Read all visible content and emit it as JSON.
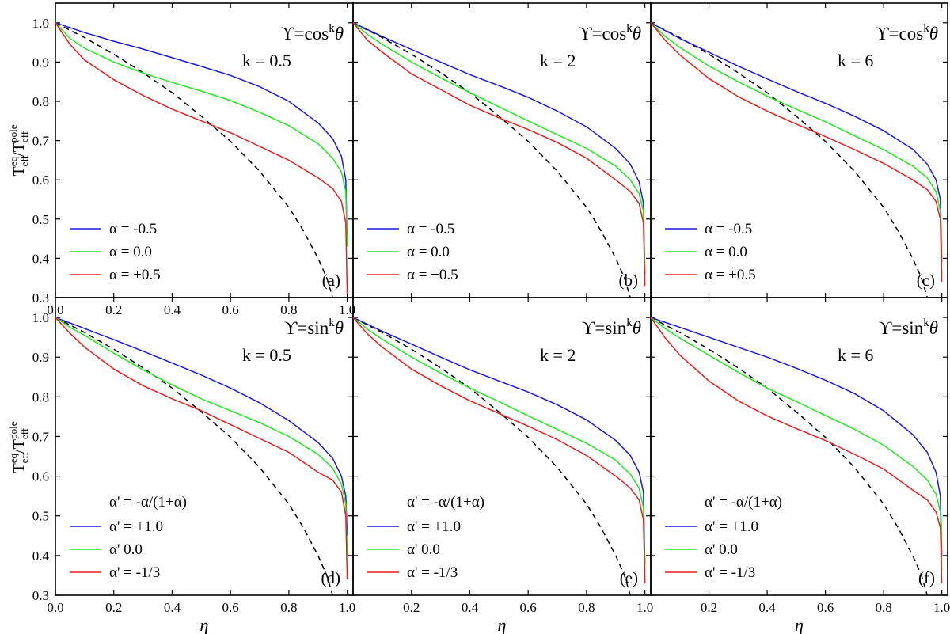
{
  "figure": {
    "y_axis_label": {
      "base": "T",
      "sub1": "eff",
      "sup1": "eq",
      "mid": "/T",
      "sub2": "eff",
      "sup2": "pole"
    },
    "x_axis_label": "η",
    "colors": {
      "blue": "#1a1adc",
      "green": "#22e622",
      "red": "#e61e1e",
      "dashed": "#000000"
    }
  },
  "chart_data": [
    {
      "type": "line",
      "panel": "(a)",
      "title": "ϒ=cos",
      "title_sup": "k",
      "title_theta": "θ",
      "k_label": "k = 0.5",
      "xlabel": "",
      "ylabel": "T_eff^eq/T_eff^pole",
      "xlim": [
        0,
        1.02
      ],
      "ylim": [
        0.3,
        1.05
      ],
      "xticks": [
        "0.0",
        "0.2",
        "0.4",
        "0.6",
        "0.8",
        "1.0"
      ],
      "yticks": [
        "0.3",
        "0.4",
        "0.5",
        "0.6",
        "0.7",
        "0.8",
        "0.9",
        "1.0"
      ],
      "legend_header": "",
      "series": [
        {
          "name": "α = -0.5",
          "color": "blue",
          "x": [
            0,
            0.1,
            0.2,
            0.3,
            0.4,
            0.5,
            0.6,
            0.7,
            0.8,
            0.9,
            0.95,
            0.98,
            0.995,
            1.0
          ],
          "y": [
            1.0,
            0.975,
            0.953,
            0.933,
            0.911,
            0.889,
            0.866,
            0.837,
            0.8,
            0.745,
            0.705,
            0.66,
            0.6,
            0.43
          ]
        },
        {
          "name": "α =  0.0",
          "color": "green",
          "x": [
            0,
            0.05,
            0.1,
            0.2,
            0.3,
            0.4,
            0.5,
            0.6,
            0.7,
            0.8,
            0.9,
            0.95,
            0.98,
            0.995,
            1.0
          ],
          "y": [
            1.0,
            0.96,
            0.935,
            0.9,
            0.872,
            0.848,
            0.826,
            0.802,
            0.772,
            0.738,
            0.692,
            0.655,
            0.62,
            0.57,
            0.43
          ]
        },
        {
          "name": "α = +0.5",
          "color": "red",
          "x": [
            0,
            0.05,
            0.1,
            0.2,
            0.3,
            0.4,
            0.5,
            0.6,
            0.7,
            0.8,
            0.9,
            0.95,
            0.98,
            0.995,
            1.0
          ],
          "y": [
            1.0,
            0.945,
            0.905,
            0.855,
            0.815,
            0.78,
            0.75,
            0.72,
            0.685,
            0.65,
            0.605,
            0.578,
            0.545,
            0.49,
            0.31
          ]
        }
      ],
      "dashed": {
        "x": [
          0,
          0.1,
          0.2,
          0.3,
          0.4,
          0.5,
          0.6,
          0.7,
          0.8,
          0.85,
          0.9,
          0.93,
          0.95
        ],
        "y": [
          1.0,
          0.962,
          0.92,
          0.873,
          0.822,
          0.762,
          0.698,
          0.622,
          0.53,
          0.47,
          0.4,
          0.35,
          0.3
        ]
      }
    },
    {
      "type": "line",
      "panel": "(b)",
      "title": "ϒ=cos",
      "title_sup": "k",
      "title_theta": "θ",
      "k_label": "k = 2",
      "xlabel": "",
      "ylabel": "",
      "xlim": [
        0,
        1.02
      ],
      "ylim": [
        0.3,
        1.05
      ],
      "xticks": [],
      "yticks": [],
      "legend_header": "",
      "series": [
        {
          "name": "α = -0.5",
          "color": "blue",
          "x": [
            0,
            0.1,
            0.2,
            0.3,
            0.4,
            0.5,
            0.6,
            0.7,
            0.8,
            0.9,
            0.95,
            0.98,
            0.995,
            1.0
          ],
          "y": [
            1.0,
            0.965,
            0.932,
            0.9,
            0.868,
            0.84,
            0.81,
            0.775,
            0.735,
            0.68,
            0.64,
            0.595,
            0.54,
            0.36
          ]
        },
        {
          "name": "α =  0.0",
          "color": "green",
          "x": [
            0,
            0.05,
            0.1,
            0.2,
            0.3,
            0.4,
            0.5,
            0.6,
            0.7,
            0.8,
            0.9,
            0.95,
            0.98,
            0.995,
            1.0
          ],
          "y": [
            1.0,
            0.97,
            0.945,
            0.9,
            0.86,
            0.822,
            0.786,
            0.75,
            0.715,
            0.68,
            0.635,
            0.6,
            0.565,
            0.52,
            0.36
          ]
        },
        {
          "name": "α = +0.5",
          "color": "red",
          "x": [
            0,
            0.05,
            0.1,
            0.2,
            0.3,
            0.4,
            0.5,
            0.6,
            0.7,
            0.8,
            0.9,
            0.95,
            0.98,
            0.995,
            1.0
          ],
          "y": [
            1.0,
            0.955,
            0.925,
            0.87,
            0.83,
            0.79,
            0.758,
            0.728,
            0.695,
            0.655,
            0.6,
            0.57,
            0.54,
            0.49,
            0.33
          ]
        }
      ],
      "dashed": {
        "x": [
          0,
          0.1,
          0.2,
          0.3,
          0.4,
          0.5,
          0.6,
          0.7,
          0.8,
          0.85,
          0.9,
          0.93,
          0.95
        ],
        "y": [
          1.0,
          0.962,
          0.92,
          0.873,
          0.822,
          0.762,
          0.698,
          0.622,
          0.53,
          0.47,
          0.4,
          0.35,
          0.3
        ]
      }
    },
    {
      "type": "line",
      "panel": "(c)",
      "title": "ϒ=cos",
      "title_sup": "k",
      "title_theta": "θ",
      "k_label": "k = 6",
      "xlabel": "",
      "ylabel": "",
      "xlim": [
        0,
        1.02
      ],
      "ylim": [
        0.3,
        1.05
      ],
      "xticks": [],
      "yticks": [],
      "legend_header": "",
      "series": [
        {
          "name": "α = -0.5",
          "color": "blue",
          "x": [
            0,
            0.1,
            0.2,
            0.3,
            0.4,
            0.5,
            0.6,
            0.7,
            0.8,
            0.9,
            0.95,
            0.98,
            0.995,
            1.0
          ],
          "y": [
            1.0,
            0.96,
            0.925,
            0.89,
            0.857,
            0.825,
            0.795,
            0.762,
            0.725,
            0.678,
            0.64,
            0.6,
            0.55,
            0.39
          ]
        },
        {
          "name": "α =  0.0",
          "color": "green",
          "x": [
            0,
            0.05,
            0.1,
            0.2,
            0.3,
            0.4,
            0.5,
            0.6,
            0.7,
            0.8,
            0.9,
            0.95,
            0.98,
            0.995,
            1.0
          ],
          "y": [
            1.0,
            0.965,
            0.937,
            0.89,
            0.85,
            0.813,
            0.78,
            0.748,
            0.712,
            0.677,
            0.635,
            0.605,
            0.57,
            0.52,
            0.36
          ]
        },
        {
          "name": "α = +0.5",
          "color": "red",
          "x": [
            0,
            0.05,
            0.1,
            0.2,
            0.3,
            0.4,
            0.5,
            0.6,
            0.7,
            0.8,
            0.9,
            0.95,
            0.98,
            0.995,
            1.0
          ],
          "y": [
            1.0,
            0.955,
            0.918,
            0.858,
            0.812,
            0.775,
            0.742,
            0.71,
            0.677,
            0.642,
            0.6,
            0.575,
            0.545,
            0.5,
            0.34
          ]
        }
      ],
      "dashed": {
        "x": [
          0,
          0.1,
          0.2,
          0.3,
          0.4,
          0.5,
          0.6,
          0.7,
          0.8,
          0.85,
          0.9,
          0.93,
          0.95
        ],
        "y": [
          1.0,
          0.962,
          0.92,
          0.873,
          0.822,
          0.762,
          0.698,
          0.622,
          0.53,
          0.47,
          0.4,
          0.35,
          0.3
        ]
      }
    },
    {
      "type": "line",
      "panel": "(d)",
      "title": "ϒ=sin",
      "title_sup": "k",
      "title_theta": "θ",
      "k_label": "k = 0.5",
      "xlabel": "η",
      "ylabel": "T_eff^eq/T_eff^pole",
      "xlim": [
        0,
        1.02
      ],
      "ylim": [
        0.3,
        1.05
      ],
      "xticks": [
        "0.0",
        "0.2",
        "0.4",
        "0.6",
        "0.8",
        "1.0"
      ],
      "yticks": [
        "0.3",
        "0.4",
        "0.5",
        "0.6",
        "0.7",
        "0.8",
        "0.9",
        "1.0"
      ],
      "legend_header": "α' = -α/(1+α)",
      "series": [
        {
          "name": "α' = +1.0",
          "color": "blue",
          "x": [
            0,
            0.1,
            0.2,
            0.3,
            0.4,
            0.5,
            0.6,
            0.7,
            0.8,
            0.9,
            0.95,
            0.98,
            0.995,
            1.0
          ],
          "y": [
            1.0,
            0.972,
            0.944,
            0.915,
            0.885,
            0.855,
            0.822,
            0.785,
            0.74,
            0.685,
            0.645,
            0.6,
            0.55,
            0.45
          ]
        },
        {
          "name": "α'  0.0",
          "color": "green",
          "x": [
            0,
            0.05,
            0.1,
            0.2,
            0.3,
            0.4,
            0.5,
            0.6,
            0.7,
            0.8,
            0.9,
            0.95,
            0.98,
            0.995,
            1.0
          ],
          "y": [
            1.0,
            0.975,
            0.955,
            0.91,
            0.868,
            0.83,
            0.795,
            0.765,
            0.735,
            0.7,
            0.655,
            0.62,
            0.58,
            0.53,
            0.4
          ]
        },
        {
          "name": "α' = -1/3",
          "color": "red",
          "x": [
            0,
            0.05,
            0.1,
            0.2,
            0.3,
            0.4,
            0.5,
            0.6,
            0.7,
            0.8,
            0.9,
            0.95,
            0.98,
            0.995,
            1.0
          ],
          "y": [
            1.0,
            0.96,
            0.925,
            0.87,
            0.828,
            0.795,
            0.765,
            0.73,
            0.695,
            0.66,
            0.61,
            0.59,
            0.56,
            0.5,
            0.34
          ]
        }
      ],
      "dashed": {
        "x": [
          0,
          0.1,
          0.2,
          0.3,
          0.4,
          0.5,
          0.6,
          0.7,
          0.8,
          0.85,
          0.9,
          0.93,
          0.95
        ],
        "y": [
          1.0,
          0.962,
          0.92,
          0.873,
          0.822,
          0.762,
          0.698,
          0.622,
          0.53,
          0.47,
          0.4,
          0.35,
          0.3
        ]
      }
    },
    {
      "type": "line",
      "panel": "(e)",
      "title": "ϒ=sin",
      "title_sup": "k",
      "title_theta": "θ",
      "k_label": "k = 2",
      "xlabel": "η",
      "ylabel": "",
      "xlim": [
        0,
        1.02
      ],
      "ylim": [
        0.3,
        1.05
      ],
      "xticks": [
        "0.2",
        "0.4",
        "0.6",
        "0.8",
        "1.0"
      ],
      "yticks": [],
      "legend_header": "α' = -α/(1+α)",
      "series": [
        {
          "name": "α' = +1.0",
          "color": "blue",
          "x": [
            0,
            0.1,
            0.2,
            0.3,
            0.4,
            0.5,
            0.6,
            0.7,
            0.8,
            0.9,
            0.95,
            0.98,
            0.995,
            1.0
          ],
          "y": [
            1.0,
            0.965,
            0.933,
            0.9,
            0.868,
            0.84,
            0.812,
            0.78,
            0.742,
            0.69,
            0.652,
            0.61,
            0.56,
            0.38
          ]
        },
        {
          "name": "α'  0.0",
          "color": "green",
          "x": [
            0,
            0.05,
            0.1,
            0.2,
            0.3,
            0.4,
            0.5,
            0.6,
            0.7,
            0.8,
            0.9,
            0.95,
            0.98,
            0.995,
            1.0
          ],
          "y": [
            1.0,
            0.97,
            0.945,
            0.9,
            0.86,
            0.822,
            0.788,
            0.752,
            0.718,
            0.683,
            0.64,
            0.605,
            0.57,
            0.52,
            0.36
          ]
        },
        {
          "name": "α' = -1/3",
          "color": "red",
          "x": [
            0,
            0.05,
            0.1,
            0.2,
            0.3,
            0.4,
            0.5,
            0.6,
            0.7,
            0.8,
            0.9,
            0.95,
            0.98,
            0.995,
            1.0
          ],
          "y": [
            1.0,
            0.958,
            0.925,
            0.87,
            0.828,
            0.79,
            0.758,
            0.726,
            0.692,
            0.652,
            0.6,
            0.57,
            0.54,
            0.49,
            0.33
          ]
        }
      ],
      "dashed": {
        "x": [
          0,
          0.1,
          0.2,
          0.3,
          0.4,
          0.5,
          0.6,
          0.7,
          0.8,
          0.85,
          0.9,
          0.93,
          0.95
        ],
        "y": [
          1.0,
          0.962,
          0.92,
          0.873,
          0.822,
          0.762,
          0.698,
          0.622,
          0.53,
          0.47,
          0.4,
          0.35,
          0.3
        ]
      }
    },
    {
      "type": "line",
      "panel": "(f)",
      "title": "ϒ=sin",
      "title_sup": "k",
      "title_theta": "θ",
      "k_label": "k = 6",
      "xlabel": "η",
      "ylabel": "",
      "xlim": [
        0,
        1.02
      ],
      "ylim": [
        0.3,
        1.05
      ],
      "xticks": [
        "0.2",
        "0.4",
        "0.6",
        "0.8",
        "1.0"
      ],
      "yticks": [],
      "legend_header": "α' = -α/(1+α)",
      "series": [
        {
          "name": "α' = +1.0",
          "color": "blue",
          "x": [
            0,
            0.1,
            0.2,
            0.3,
            0.4,
            0.5,
            0.6,
            0.7,
            0.8,
            0.9,
            0.95,
            0.98,
            0.995,
            1.0
          ],
          "y": [
            1.0,
            0.975,
            0.95,
            0.925,
            0.9,
            0.872,
            0.842,
            0.808,
            0.765,
            0.705,
            0.66,
            0.61,
            0.55,
            0.4
          ]
        },
        {
          "name": "α'  0.0",
          "color": "green",
          "x": [
            0,
            0.05,
            0.1,
            0.2,
            0.3,
            0.4,
            0.5,
            0.6,
            0.7,
            0.8,
            0.9,
            0.95,
            0.98,
            0.995,
            1.0
          ],
          "y": [
            1.0,
            0.972,
            0.948,
            0.905,
            0.862,
            0.822,
            0.788,
            0.753,
            0.718,
            0.678,
            0.625,
            0.59,
            0.555,
            0.51,
            0.36
          ]
        },
        {
          "name": "α' = -1/3",
          "color": "red",
          "x": [
            0,
            0.05,
            0.1,
            0.2,
            0.3,
            0.4,
            0.5,
            0.6,
            0.7,
            0.8,
            0.9,
            0.95,
            0.98,
            0.995,
            1.0
          ],
          "y": [
            1.0,
            0.948,
            0.905,
            0.84,
            0.79,
            0.752,
            0.72,
            0.69,
            0.655,
            0.618,
            0.565,
            0.54,
            0.51,
            0.47,
            0.33
          ]
        }
      ],
      "dashed": {
        "x": [
          0,
          0.1,
          0.2,
          0.3,
          0.4,
          0.5,
          0.6,
          0.7,
          0.8,
          0.85,
          0.9,
          0.93,
          0.95
        ],
        "y": [
          1.0,
          0.962,
          0.92,
          0.873,
          0.822,
          0.762,
          0.698,
          0.622,
          0.53,
          0.47,
          0.4,
          0.35,
          0.3
        ]
      }
    }
  ]
}
